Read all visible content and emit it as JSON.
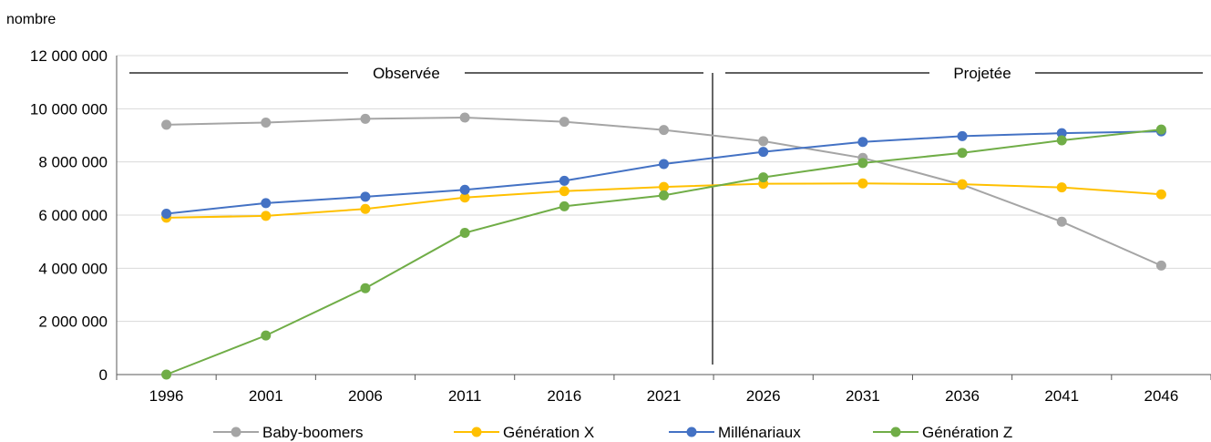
{
  "chart_data": {
    "type": "line",
    "ylabel": "nombre",
    "ylim": [
      0,
      12000000
    ],
    "yticks": [
      "0",
      "2 000 000",
      "4 000 000",
      "6 000 000",
      "8 000 000",
      "10 000 000",
      "12 000 000"
    ],
    "yticks_values": [
      0,
      2000000,
      4000000,
      6000000,
      8000000,
      10000000,
      12000000
    ],
    "categories": [
      "1996",
      "2001",
      "2006",
      "2011",
      "2016",
      "2021",
      "2026",
      "2031",
      "2036",
      "2041",
      "2046"
    ],
    "grid": true,
    "legend_position": "bottom",
    "periods": [
      {
        "label": "Observée",
        "from": "1996",
        "to": "2021"
      },
      {
        "label": "Projetée",
        "from": "2026",
        "to": "2046"
      }
    ],
    "series": [
      {
        "name": "Baby-boomers",
        "color": "#a5a5a5",
        "values": [
          9400000,
          9480000,
          9620000,
          9670000,
          9510000,
          9200000,
          8780000,
          8150000,
          7140000,
          5750000,
          4100000
        ]
      },
      {
        "name": "Génération X",
        "color": "#ffc000",
        "values": [
          5900000,
          5970000,
          6230000,
          6660000,
          6900000,
          7060000,
          7180000,
          7190000,
          7160000,
          7040000,
          6780000
        ]
      },
      {
        "name": "Millénariaux",
        "color": "#4472c4",
        "values": [
          6050000,
          6450000,
          6690000,
          6950000,
          7290000,
          7920000,
          8380000,
          8750000,
          8970000,
          9080000,
          9150000
        ]
      },
      {
        "name": "Génération Z",
        "color": "#70ad47",
        "values": [
          0,
          1470000,
          3250000,
          5330000,
          6330000,
          6740000,
          7420000,
          7960000,
          8340000,
          8810000,
          9220000
        ]
      }
    ]
  }
}
